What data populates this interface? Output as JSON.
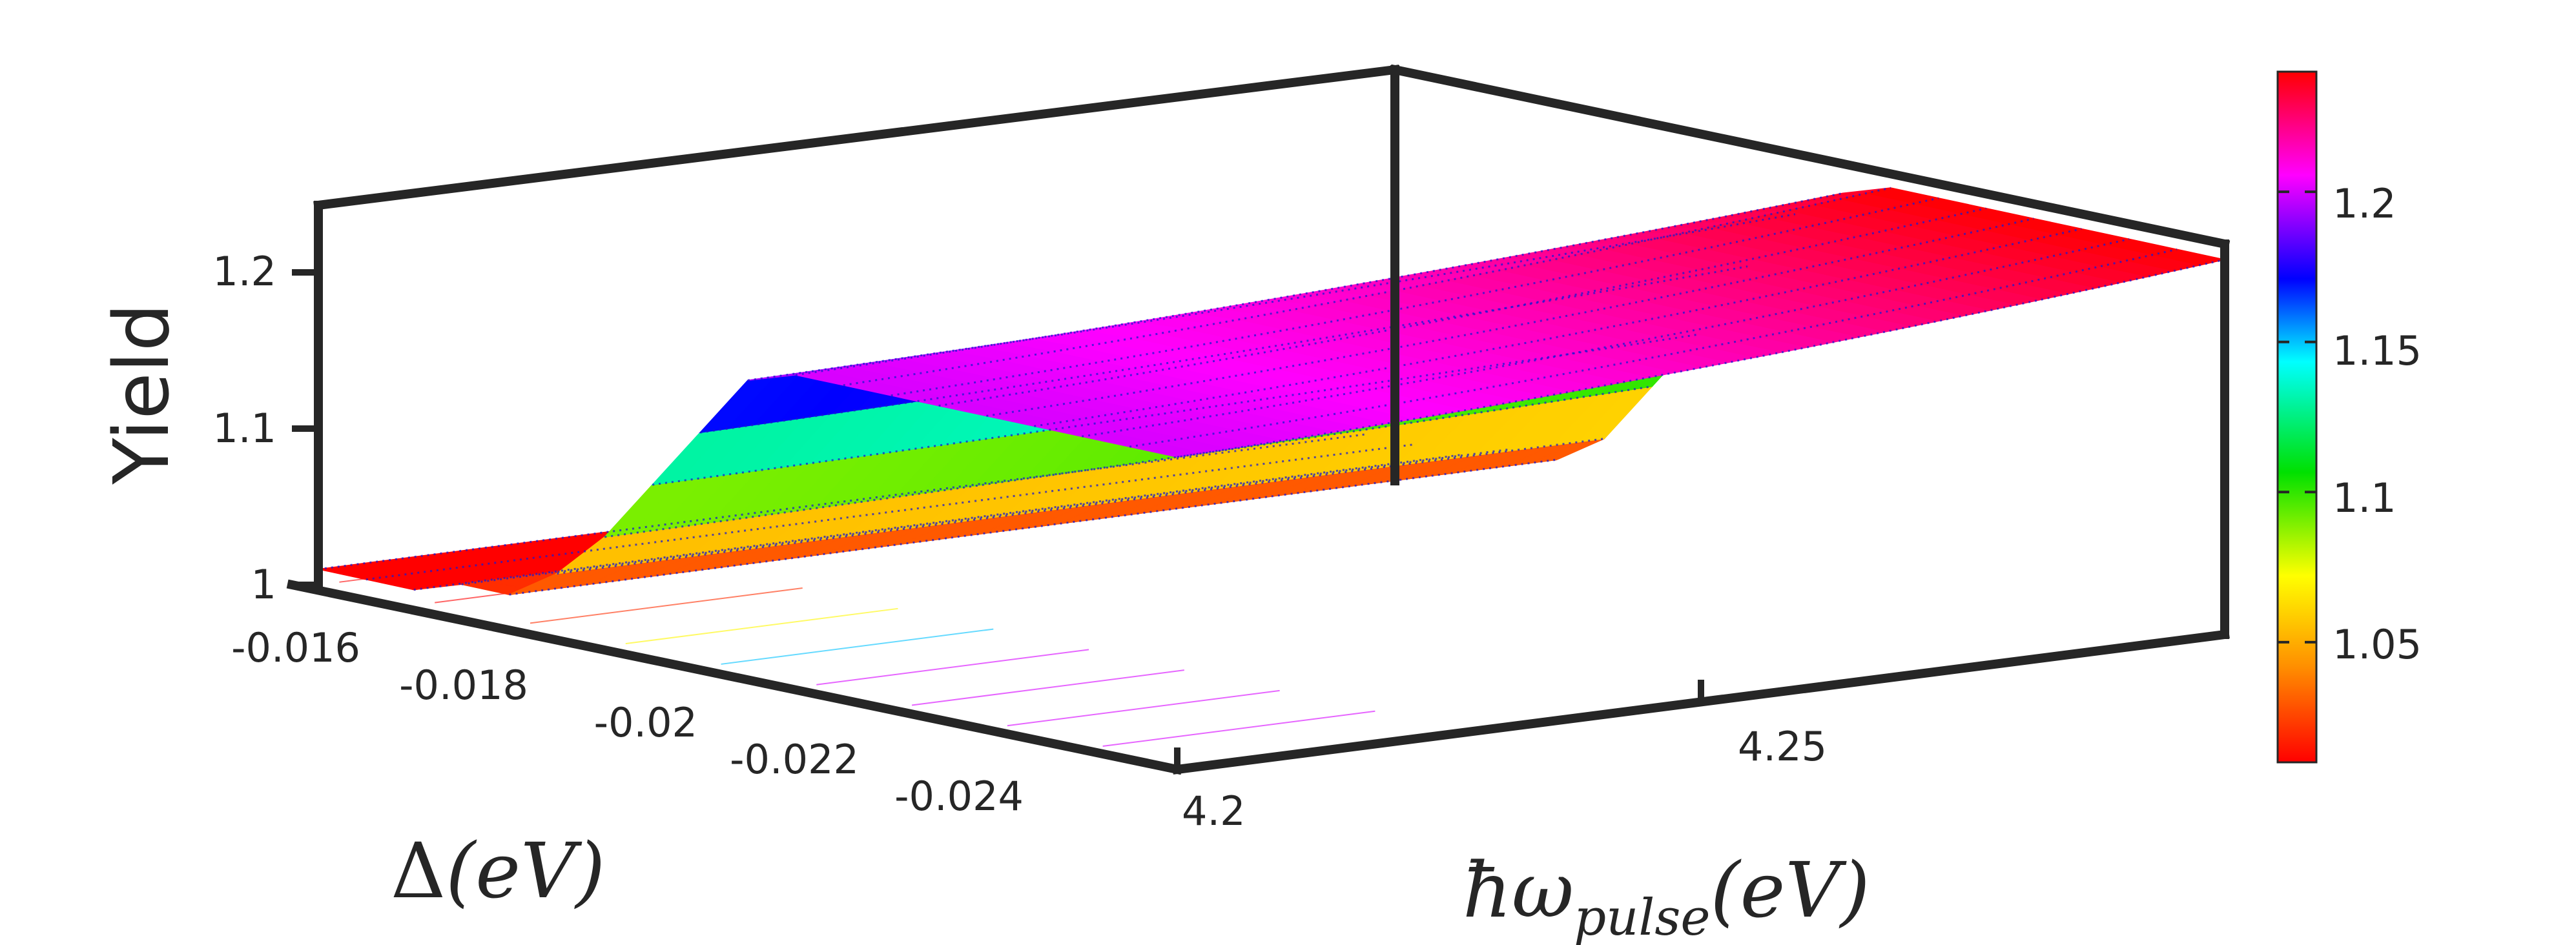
{
  "chart_data": {
    "type": "surface",
    "title": "",
    "zlabel": "Yield",
    "xlabel": {
      "symbol": "ħω",
      "subscript": "pulse",
      "unit": "(eV)"
    },
    "ylabel": {
      "symbol": "Δ",
      "unit": "(eV)"
    },
    "x_ticks": [
      "4.2",
      "4.25"
    ],
    "y_ticks": [
      "-0.016",
      "-0.018",
      "-0.02",
      "-0.022",
      "-0.024"
    ],
    "z_ticks": [
      "1",
      "1.1",
      "1.2"
    ],
    "colorbar_ticks": [
      "1.05",
      "1.1",
      "1.15",
      "1.2"
    ],
    "x_range": [
      4.2,
      4.3
    ],
    "delta_range": [
      -0.016,
      -0.025
    ],
    "z_range": [
      1.0,
      1.25
    ],
    "colorbar_range": [
      1.01,
      1.24
    ],
    "colormap": [
      "#ff0000",
      "#ffa000",
      "#ffff00",
      "#00e000",
      "#00ffff",
      "#0000ff",
      "#ff00ff",
      "#ff0000"
    ],
    "surface": {
      "delta": [
        -0.016,
        -0.0165,
        -0.017,
        -0.0175,
        -0.018,
        -0.0185,
        -0.019,
        -0.0195,
        -0.02,
        -0.0205,
        -0.021,
        -0.0215,
        -0.022,
        -0.0225,
        -0.023,
        -0.0235,
        -0.024,
        -0.0245,
        -0.025
      ],
      "yield_at_x_min": [
        1.01,
        1.01,
        1.01,
        1.02,
        1.02,
        1.04,
        1.07,
        1.11,
        1.15,
        1.19,
        1.2,
        1.2,
        1.2,
        1.2,
        1.2,
        1.2,
        1.2,
        1.2,
        1.2
      ],
      "yield_at_x_max": [
        1.01,
        1.01,
        1.01,
        1.02,
        1.02,
        1.04,
        1.08,
        1.12,
        1.17,
        1.21,
        1.23,
        1.24,
        1.24,
        1.24,
        1.24,
        1.24,
        1.24,
        1.24,
        1.24
      ]
    }
  }
}
